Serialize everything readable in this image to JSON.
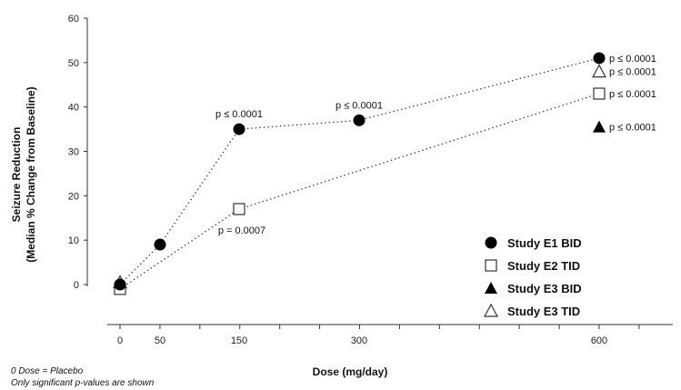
{
  "chart_data": {
    "type": "scatter",
    "title": "",
    "xlabel": "Dose (mg/day)",
    "ylabel_line1": "Seizure Reduction",
    "ylabel_line2": "(Median % Change from Baseline)",
    "x_ticks": [
      0,
      50,
      150,
      300,
      600
    ],
    "y_ticks": [
      0,
      10,
      20,
      30,
      40,
      50,
      60
    ],
    "ylim": [
      0,
      60
    ],
    "grid": false,
    "legend_position": "bottom-right",
    "series": [
      {
        "name": "Study E1 BID",
        "marker": "filled-circle",
        "connected": true,
        "points": [
          {
            "x": 0,
            "y": 0
          },
          {
            "x": 50,
            "y": 9
          },
          {
            "x": 150,
            "y": 35
          },
          {
            "x": 300,
            "y": 37
          },
          {
            "x": 600,
            "y": 51
          }
        ]
      },
      {
        "name": "Study E2 TID",
        "marker": "open-square",
        "connected": true,
        "points": [
          {
            "x": 0,
            "y": -1
          },
          {
            "x": 150,
            "y": 17
          },
          {
            "x": 600,
            "y": 43
          }
        ]
      },
      {
        "name": "Study E3 BID",
        "marker": "filled-triangle",
        "connected": false,
        "points": [
          {
            "x": 600,
            "y": 35.5
          }
        ]
      },
      {
        "name": "Study E3 TID",
        "marker": "open-triangle",
        "connected": false,
        "points": [
          {
            "x": 0,
            "y": 0.5
          },
          {
            "x": 600,
            "y": 48
          }
        ]
      }
    ],
    "annotations": [
      {
        "text": "p ≤ 0.0001",
        "x": 150,
        "y": 35,
        "placement": "above"
      },
      {
        "text": "p ≤ 0.0001",
        "x": 300,
        "y": 37,
        "placement": "above"
      },
      {
        "text": "p = 0.0007",
        "x": 150,
        "y": 17,
        "placement": "below"
      },
      {
        "text": "p ≤ 0.0001",
        "x": 600,
        "y": 51,
        "placement": "right"
      },
      {
        "text": "p ≤ 0.0001",
        "x": 600,
        "y": 48,
        "placement": "right"
      },
      {
        "text": "p ≤ 0.0001",
        "x": 600,
        "y": 43,
        "placement": "right"
      },
      {
        "text": "p ≤ 0.0001",
        "x": 600,
        "y": 35.5,
        "placement": "right"
      }
    ],
    "footnotes": [
      "0 Dose = Placebo",
      "Only significant p-values are shown"
    ]
  }
}
